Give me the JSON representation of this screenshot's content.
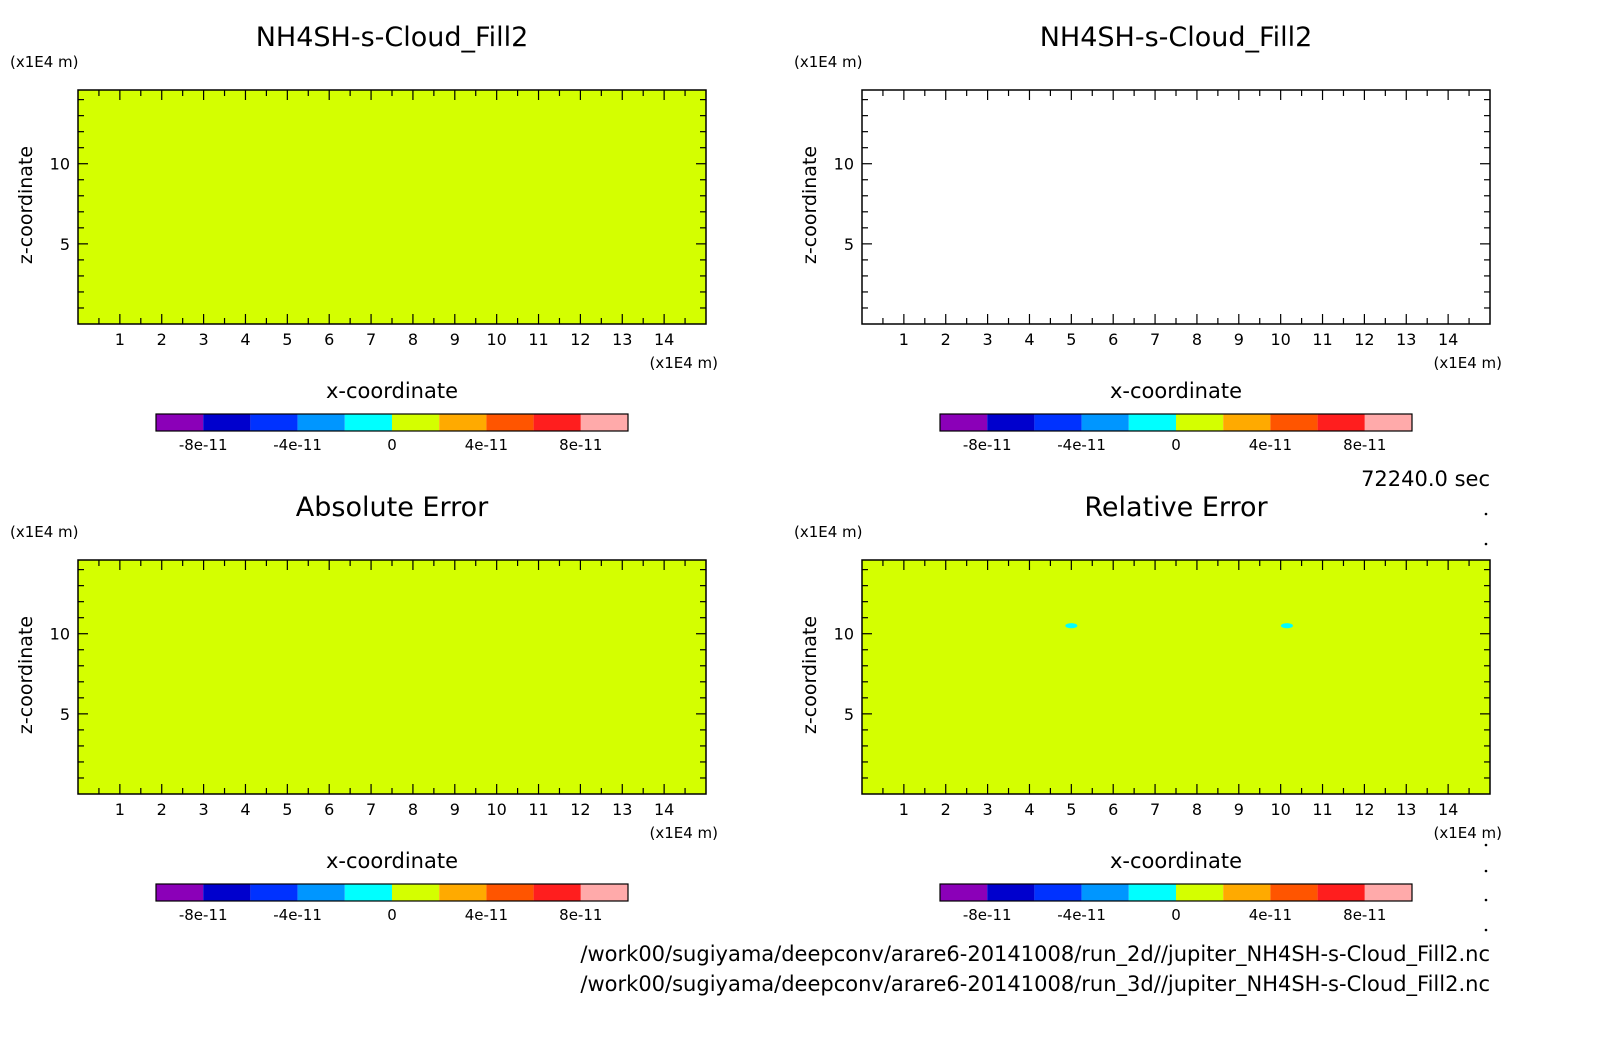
{
  "chart_data": [
    {
      "type": "heatmap",
      "title": "NH4SH-s-Cloud_Fill2",
      "xlabel": "x-coordinate",
      "ylabel": "z-coordinate",
      "x_unit": "(x1E4 m)",
      "y_unit": "(x1E4 m)",
      "xlim": [
        0,
        15
      ],
      "ylim": [
        0,
        14.6
      ],
      "xticks": [
        1,
        2,
        3,
        4,
        5,
        6,
        7,
        8,
        9,
        10,
        11,
        12,
        13,
        14
      ],
      "yticks": [
        5,
        10
      ],
      "field": "uniform",
      "fill_value": 0,
      "colorbar": {
        "levels": [
          -1e-10,
          -8e-11,
          -6e-11,
          -4e-11,
          -2e-11,
          0,
          2e-11,
          4e-11,
          6e-11,
          8e-11,
          1e-10
        ],
        "tick_labels": [
          "-8e-11",
          "-4e-11",
          "0",
          "4e-11",
          "8e-11"
        ],
        "tick_values": [
          -8e-11,
          -4e-11,
          0,
          4e-11,
          8e-11
        ]
      }
    },
    {
      "type": "heatmap",
      "title": "NH4SH-s-Cloud_Fill2",
      "xlabel": "x-coordinate",
      "ylabel": "z-coordinate",
      "x_unit": "(x1E4 m)",
      "y_unit": "(x1E4 m)",
      "xlim": [
        0,
        15
      ],
      "ylim": [
        0,
        14.6
      ],
      "xticks": [
        1,
        2,
        3,
        4,
        5,
        6,
        7,
        8,
        9,
        10,
        11,
        12,
        13,
        14
      ],
      "yticks": [
        5,
        10
      ],
      "field": "empty",
      "colorbar": {
        "levels": [
          -1e-10,
          -8e-11,
          -6e-11,
          -4e-11,
          -2e-11,
          0,
          2e-11,
          4e-11,
          6e-11,
          8e-11,
          1e-10
        ],
        "tick_labels": [
          "-8e-11",
          "-4e-11",
          "0",
          "4e-11",
          "8e-11"
        ],
        "tick_values": [
          -8e-11,
          -4e-11,
          0,
          4e-11,
          8e-11
        ]
      }
    },
    {
      "type": "heatmap",
      "title": "Absolute Error",
      "xlabel": "x-coordinate",
      "ylabel": "z-coordinate",
      "x_unit": "(x1E4 m)",
      "y_unit": "(x1E4 m)",
      "xlim": [
        0,
        15
      ],
      "ylim": [
        0,
        14.6
      ],
      "xticks": [
        1,
        2,
        3,
        4,
        5,
        6,
        7,
        8,
        9,
        10,
        11,
        12,
        13,
        14
      ],
      "yticks": [
        5,
        10
      ],
      "field": "uniform",
      "fill_value": 0,
      "colorbar": {
        "levels": [
          -1e-10,
          -8e-11,
          -6e-11,
          -4e-11,
          -2e-11,
          0,
          2e-11,
          4e-11,
          6e-11,
          8e-11,
          1e-10
        ],
        "tick_labels": [
          "-8e-11",
          "-4e-11",
          "0",
          "4e-11",
          "8e-11"
        ],
        "tick_values": [
          -8e-11,
          -4e-11,
          0,
          4e-11,
          8e-11
        ]
      }
    },
    {
      "type": "heatmap",
      "title": "Relative Error",
      "xlabel": "x-coordinate",
      "ylabel": "z-coordinate",
      "x_unit": "(x1E4 m)",
      "y_unit": "(x1E4 m)",
      "xlim": [
        0,
        15
      ],
      "ylim": [
        0,
        14.6
      ],
      "xticks": [
        1,
        2,
        3,
        4,
        5,
        6,
        7,
        8,
        9,
        10,
        11,
        12,
        13,
        14
      ],
      "yticks": [
        5,
        10
      ],
      "field": "uniform",
      "fill_value": 0,
      "anomalies": [
        {
          "x": 5.0,
          "z": 10.5,
          "value": -1e-11
        },
        {
          "x": 10.15,
          "z": 10.5,
          "value": -1e-11
        }
      ],
      "colorbar": {
        "levels": [
          -1e-10,
          -8e-11,
          -6e-11,
          -4e-11,
          -2e-11,
          0,
          2e-11,
          4e-11,
          6e-11,
          8e-11,
          1e-10
        ],
        "tick_labels": [
          "-8e-11",
          "-4e-11",
          "0",
          "4e-11",
          "8e-11"
        ],
        "tick_values": [
          -8e-11,
          -4e-11,
          0,
          4e-11,
          8e-11
        ]
      }
    }
  ],
  "palette": [
    "#8b00b8",
    "#0000cd",
    "#0032ff",
    "#0096ff",
    "#00ffff",
    "#d4ff00",
    "#ffaa00",
    "#ff5500",
    "#ff1e1e",
    "#ffaaaa"
  ],
  "time_label": "72240.0 sec",
  "file_paths": [
    "/work00/sugiyama/deepconv/arare6-20141008/run_2d//jupiter_NH4SH-s-Cloud_Fill2.nc",
    "/work00/sugiyama/deepconv/arare6-20141008/run_3d//jupiter_NH4SH-s-Cloud_Fill2.nc"
  ]
}
